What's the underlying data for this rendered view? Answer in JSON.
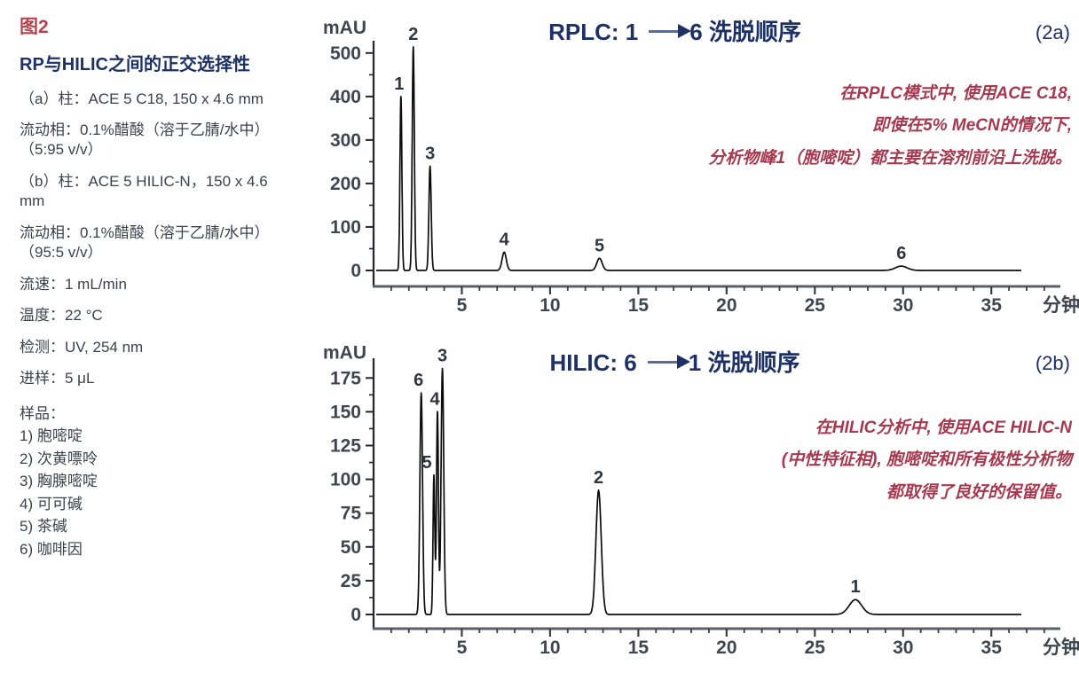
{
  "figure": {
    "tag": "图2",
    "title": "RP与HILIC之间的正交选择性",
    "conditions": [
      "（a）柱：ACE 5 C18, 150 x 4.6 mm",
      "流动相：0.1%醋酸（溶于乙腈/水中）（5:95 v/v）",
      "（b）柱：ACE 5 HILIC-N，150 x 4.6 mm",
      "流动相：0.1%醋酸（溶于乙腈/水中）（95:5 v/v）",
      "流速：1 mL/min",
      "温度：22 °C",
      "检测：UV, 254 nm",
      "进样：5 μL"
    ],
    "sample_header": "样品：",
    "samples": [
      "1) 胞嘧啶",
      "2) 次黄嘌呤",
      "3) 胸腺嘧啶",
      "4) 可可碱",
      "5) 茶碱",
      "6) 咖啡因"
    ]
  },
  "chart_data": [
    {
      "type": "line",
      "id": "rplc",
      "title_prefix": "RPLC: 1",
      "title_suffix": "6 洗脱顺序",
      "corner_label": "(2a)",
      "ylabel": "mAU",
      "xlabel": "分钟",
      "ylim": [
        0,
        520
      ],
      "xlim": [
        0,
        37
      ],
      "yticks": [
        0,
        100,
        200,
        300,
        400,
        500
      ],
      "xticks": [
        5,
        10,
        15,
        20,
        25,
        30,
        35
      ],
      "ytick_minor_step": 50,
      "xtick_minor_step": 1,
      "grid": false,
      "annotation_lines": [
        "在RPLC模式中, 使用ACE C18,",
        "即使在5% MeCN的情况下,",
        "分析物峰1（胞嘧啶）都主要在溶剂前沿上洗脱。"
      ],
      "peaks": [
        {
          "label": "1",
          "time_min": 1.55,
          "height_mau": 400,
          "width_min": 0.055,
          "label_dx": -2
        },
        {
          "label": "2",
          "time_min": 2.25,
          "height_mau": 514,
          "width_min": 0.06
        },
        {
          "label": "3",
          "time_min": 3.2,
          "height_mau": 240,
          "width_min": 0.065
        },
        {
          "label": "4",
          "time_min": 7.4,
          "height_mau": 42,
          "width_min": 0.12
        },
        {
          "label": "5",
          "time_min": 12.8,
          "height_mau": 28,
          "width_min": 0.15
        },
        {
          "label": "6",
          "time_min": 29.9,
          "height_mau": 10,
          "width_min": 0.33
        }
      ]
    },
    {
      "type": "line",
      "id": "hilic",
      "title_prefix": "HILIC: 6",
      "title_suffix": "1 洗脱顺序",
      "corner_label": "(2b)",
      "ylabel": "mAU",
      "xlabel": "分钟",
      "ylim": [
        0,
        187
      ],
      "xlim": [
        0,
        37
      ],
      "yticks": [
        0,
        25,
        50,
        75,
        100,
        125,
        150,
        175
      ],
      "xticks": [
        5,
        10,
        15,
        20,
        25,
        30,
        35
      ],
      "ytick_minor_step": 12.5,
      "xtick_minor_step": 1,
      "grid": false,
      "annotation_lines": [
        "在HILIC分析中, 使用ACE HILIC-N",
        "(中性特征相), 胞嘧啶和所有极性分析物",
        "都取得了良好的保留值。"
      ],
      "peaks": [
        {
          "label": "6",
          "time_min": 2.7,
          "height_mau": 164,
          "width_min": 0.075,
          "label_dx": -3
        },
        {
          "label": "5",
          "time_min": 3.42,
          "height_mau": 103,
          "width_min": 0.05,
          "label_dx": -8
        },
        {
          "label": "4",
          "time_min": 3.62,
          "height_mau": 150,
          "width_min": 0.055,
          "label_dx": -3
        },
        {
          "label": "3",
          "time_min": 3.9,
          "height_mau": 182,
          "width_min": 0.075
        },
        {
          "label": "2",
          "time_min": 12.75,
          "height_mau": 92,
          "width_min": 0.15
        },
        {
          "label": "1",
          "time_min": 27.3,
          "height_mau": 11,
          "width_min": 0.35
        }
      ]
    }
  ],
  "colors": {
    "navy": "#1d3166",
    "crimson": "#a63950",
    "figred": "#b2434f",
    "body": "#3c414a",
    "tickcol": "#3f4650",
    "trace": "#0c0c0c"
  }
}
